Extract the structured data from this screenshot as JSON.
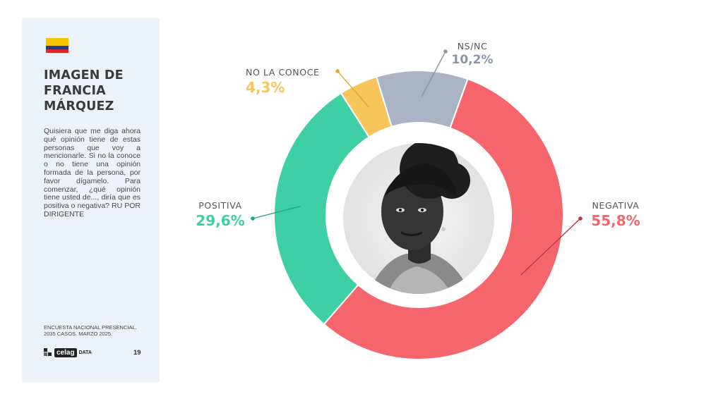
{
  "sidebar": {
    "title_lines": [
      "IMAGEN DE",
      "FRANCIA",
      "MÁRQUEZ"
    ],
    "question": "Quisiera que me diga ahora qué opinión tiene de estas personas que voy a mencionarle. Si no la conoce o no tiene una opinión formada de la persona, por favor dígamelo. Para comenzar, ¿qué opinión tiene usted de..., diría que es positiva o negativa? RU POR DIRIGENTE",
    "source_lines": [
      "ENCUESTA NACIONAL PRESENCIAL.",
      "2035 CASOS. MARZO 2025."
    ],
    "logo_brand": "celag",
    "logo_sub": "DATA",
    "page_number": "19",
    "flag_colors": [
      "#f5c400",
      "#1f3d8c",
      "#d8282f"
    ]
  },
  "chart_data": {
    "type": "pie",
    "donut": true,
    "categories": [
      "NEGATIVA",
      "POSITIVA",
      "NO LA CONOCE",
      "NS/NC"
    ],
    "values": [
      55.8,
      29.6,
      4.3,
      10.2
    ],
    "value_labels": [
      "55,8%",
      "29,6%",
      "4,3%",
      "10,2%"
    ],
    "colors": [
      "#f4666c",
      "#3ecfa4",
      "#f8c55a",
      "#a9b3c4"
    ],
    "legend": "none",
    "center_image": "portrait"
  }
}
